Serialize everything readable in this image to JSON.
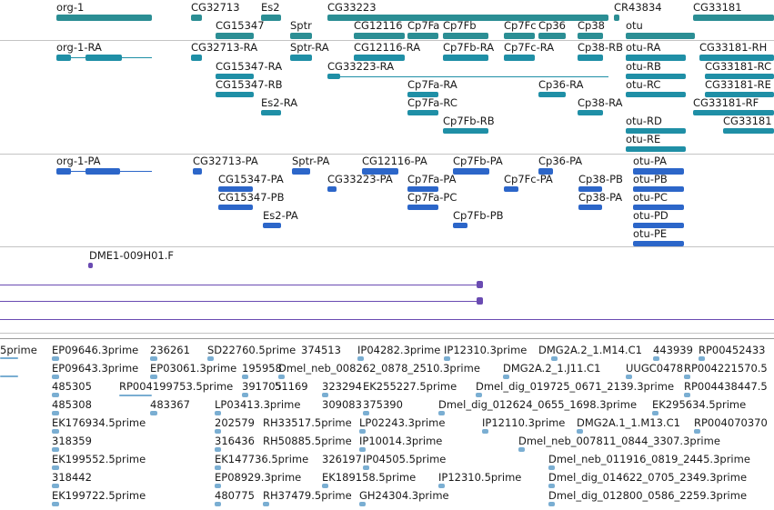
{
  "colors": {
    "gene": "#2b8e94",
    "transcript": "#1f8fa6",
    "protein": "#2c66c9",
    "alignment": "#6a4bb2",
    "est": "#7aaed2",
    "label": "#1a1a1a",
    "separator": "#c4c4c4"
  },
  "tracks": {
    "genes": [
      "org-1",
      "CG32713",
      "Es2",
      "CG33223",
      "CR43834",
      "CG33181",
      "CG15347",
      "Sptr",
      "CG12116",
      "Cp7Fa",
      "Cp7Fb",
      "Cp7Fc",
      "Cp36",
      "Cp38",
      "otu"
    ],
    "transcripts": [
      "org-1-RA",
      "CG32713-RA",
      "Sptr-RA",
      "CG12116-RA",
      "Cp7Fb-RA",
      "Cp7Fc-RA",
      "Cp38-RB",
      "otu-RA",
      "CG33181-RH",
      "CG15347-RA",
      "CG33223-RA",
      "otu-RB",
      "CG33181-RC",
      "CG15347-RB",
      "Cp7Fa-RA",
      "Cp36-RA",
      "otu-RC",
      "CG33181-RE",
      "Es2-RA",
      "Cp7Fa-RC",
      "Cp38-RA",
      "CG33181-RF",
      "Cp7Fb-RB",
      "otu-RD",
      "CG33181",
      "otu-RE"
    ],
    "proteins": [
      "org-1-PA",
      "CG32713-PA",
      "Sptr-PA",
      "CG12116-PA",
      "Cp7Fb-PA",
      "Cp36-PA",
      "otu-PA",
      "CG15347-PA",
      "CG33223-PA",
      "Cp7Fa-PA",
      "Cp7Fc-PA",
      "Cp38-PB",
      "otu-PB",
      "CG15347-PB",
      "Cp7Fa-PC",
      "Cp38-PA",
      "otu-PC",
      "Es2-PA",
      "Cp7Fb-PB",
      "otu-PD",
      "otu-PE"
    ],
    "alignments": [
      "DME1-009H01.F"
    ],
    "ests": [
      "5prime",
      "EP09646.3prime",
      "236261",
      "SD22760.5prime",
      "374513",
      "IP04282.3prime",
      "IP12310.3prime",
      "DMG2A.2_1.M14.C1",
      "443939",
      "RP00452433",
      "EP09643.3prime",
      "EP03061.3prime",
      "195958",
      "Dmel_neb_008262_0878_2510.3prime",
      "DMG2A.2_1.J11.C1",
      "UUGC0478",
      "RP004221570.5",
      "485305",
      "RP004199753.5prime",
      "391705",
      "51169",
      "323294",
      "EK255227.5prime",
      "Dmel_dig_019725_0671_2139.3prime",
      "RP004438447.5",
      "485308",
      "483367",
      "LP03413.3prime",
      "309083",
      "375390",
      "Dmel_dig_012624_0655_1698.3prime",
      "EK295634.5prime",
      "EK176934.5prime",
      "202579",
      "RH33517.5prime",
      "LP02243.3prime",
      "IP12110.3prime",
      "DMG2A.1_1.M13.C1",
      "RP004070370",
      "318359",
      "316436",
      "RH50885.5prime",
      "IP10014.3prime",
      "Dmel_neb_007811_0844_3307.3prime",
      "EK199552.5prime",
      "EK147736.5prime",
      "326197",
      "IP04505.5prime",
      "Dmel_neb_011916_0819_2445.3prime",
      "318442",
      "EP08929.3prime",
      "EK189158.5prime",
      "IP12310.5prime",
      "Dmel_dig_014622_0705_2349.3prime",
      "EK199722.5prime",
      "480775",
      "RH37479.5prime",
      "GH24304.3prime",
      "Dmel_dig_012800_0586_2259.3prime"
    ]
  }
}
